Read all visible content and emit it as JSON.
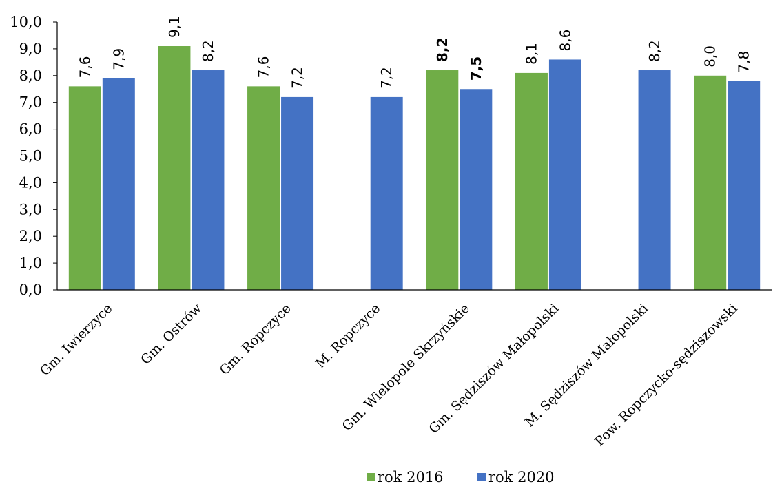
{
  "chart_data": {
    "type": "bar",
    "categories": [
      "Gm. Iwierzyce",
      "Gm. Ostrów",
      "Gm. Ropczyce",
      "M. Ropczyce",
      "Gm. Wielopole Skrzyńskie",
      "Gm. Sędziszów Małopolski",
      "M. Sędziszów Małopolski",
      "Pow. Ropczycko-sędziszowski"
    ],
    "series": [
      {
        "name": "rok 2016",
        "color": "#70ad47",
        "values": [
          7.6,
          9.1,
          7.6,
          null,
          8.2,
          8.1,
          null,
          8.0
        ],
        "labels": [
          "7,6",
          "9,1",
          "7,6",
          "",
          "8,2",
          "8,1",
          "",
          "8,0"
        ]
      },
      {
        "name": "rok 2020",
        "color": "#4472c4",
        "values": [
          7.9,
          8.2,
          7.2,
          7.2,
          7.5,
          8.6,
          8.2,
          7.8
        ],
        "labels": [
          "7,9",
          "8,2",
          "7,2",
          "7,2",
          "7,5",
          "8,6",
          "8,2",
          "7,8"
        ]
      }
    ],
    "bold_labels_category": "Gm. Wielopole Skrzyńskie",
    "ylim": [
      0,
      10
    ],
    "yticks": [
      "0,0",
      "1,0",
      "2,0",
      "3,0",
      "4,0",
      "5,0",
      "6,0",
      "7,0",
      "8,0",
      "9,0",
      "10,0"
    ],
    "title": "",
    "xlabel": "",
    "ylabel": "",
    "grid": false,
    "legend": "bottom"
  }
}
